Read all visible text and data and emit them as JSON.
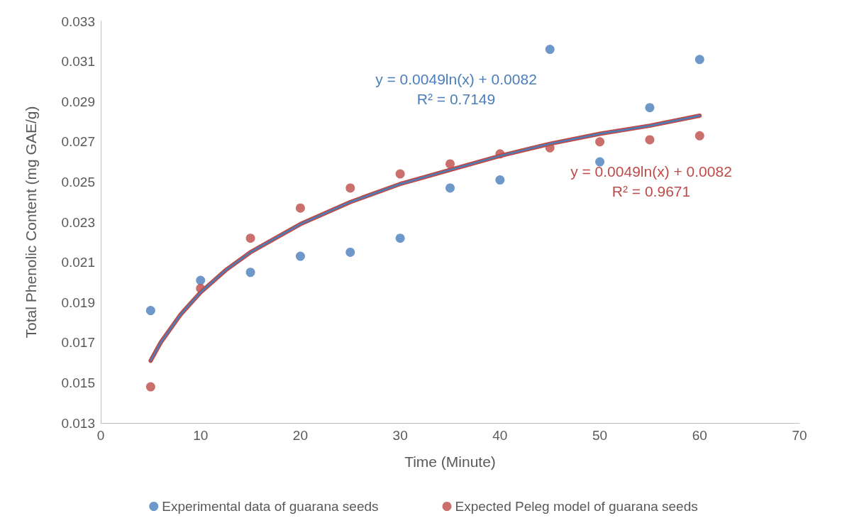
{
  "chart_data": {
    "type": "scatter",
    "xlabel": "Time (Minute)",
    "ylabel": "Total Phenolic Content (mg GAE/g)",
    "xlim": [
      0,
      70
    ],
    "xticks": [
      0,
      10,
      20,
      30,
      40,
      50,
      60,
      70
    ],
    "ylim": [
      0.013,
      0.033
    ],
    "yticks": [
      0.013,
      0.015,
      0.017,
      0.019,
      0.021,
      0.023,
      0.025,
      0.027,
      0.029,
      0.031,
      0.033
    ],
    "grid": false,
    "legend": "bottom",
    "marker": "circle",
    "x": [
      5,
      10,
      15,
      20,
      25,
      30,
      35,
      40,
      45,
      50,
      55,
      60
    ],
    "series": [
      {
        "name": "Experimental data of guarana seeds",
        "color": "#4a7ebb",
        "values": [
          0.0186,
          0.0201,
          0.0205,
          0.0213,
          0.0215,
          0.0222,
          0.0247,
          0.0251,
          0.0316,
          0.026,
          0.0287,
          0.0311
        ]
      },
      {
        "name": "Expected Peleg model of guarana seeds",
        "color": "#be4b48",
        "values": [
          0.0148,
          0.0197,
          0.0222,
          0.0237,
          0.0247,
          0.0254,
          0.0259,
          0.0264,
          0.0267,
          0.027,
          0.0271,
          0.0273
        ]
      },
      {
        "type": "line",
        "color": "#4a7ebb",
        "marker": "none",
        "x": [
          5,
          6,
          7,
          8,
          10,
          12.5,
          15,
          20,
          25,
          30,
          35,
          40,
          45,
          50,
          55,
          60
        ],
        "values": [
          0.0161,
          0.017,
          0.0177,
          0.0184,
          0.0195,
          0.0206,
          0.0215,
          0.0229,
          0.024,
          0.0249,
          0.0256,
          0.0263,
          0.0269,
          0.0274,
          0.0278,
          0.0283
        ]
      },
      {
        "type": "line",
        "color": "#be4b48",
        "marker": "none",
        "x": [
          5,
          6,
          7,
          8,
          10,
          12.5,
          15,
          20,
          25,
          30,
          35,
          40,
          45,
          50,
          55,
          60
        ],
        "values": [
          0.0161,
          0.017,
          0.0177,
          0.0184,
          0.0195,
          0.0206,
          0.0215,
          0.0229,
          0.024,
          0.0249,
          0.0256,
          0.0263,
          0.0269,
          0.0274,
          0.0278,
          0.0283
        ]
      }
    ],
    "annotations": [
      "y = 0.0049ln(x) + 0.0082\nR² = 0.7149",
      "y = 0.0049ln(x) + 0.0082\nR² = 0.9671"
    ]
  }
}
